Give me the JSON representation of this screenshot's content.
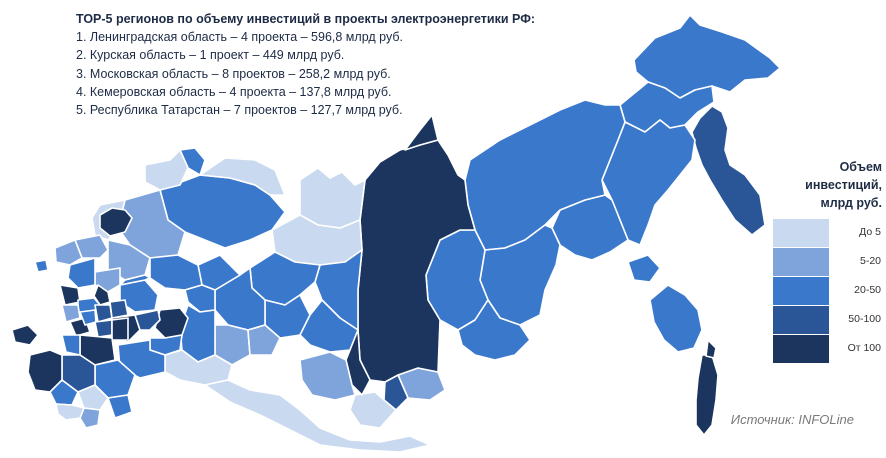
{
  "top5": {
    "title": "ТОР-5 регионов по объему инвестиций в проекты электроэнергетики РФ:",
    "items": [
      "1. Ленинградская область – 4 проекта – 596,8 млрд руб.",
      "2. Курская область – 1 проект – 449 млрд руб.",
      "3. Московская область – 8 проектов – 258,2 млрд руб.",
      "4. Кемеровская область – 4 проекта – 137,8 млрд руб.",
      "5. Республика Татарстан – 7 проектов – 127,7 млрд руб."
    ]
  },
  "legend": {
    "title_lines": [
      "Объем",
      "инвестиций,",
      "млрд руб."
    ],
    "classes": [
      {
        "label": "До 5",
        "color": "#c9d9ef"
      },
      {
        "label": "5-20",
        "color": "#7fa4dc"
      },
      {
        "label": "20-50",
        "color": "#3a78cc"
      },
      {
        "label": "50-100",
        "color": "#2a5596"
      },
      {
        "label": "От 100",
        "color": "#1b355f"
      }
    ]
  },
  "source": "Источник: INFOLine"
}
